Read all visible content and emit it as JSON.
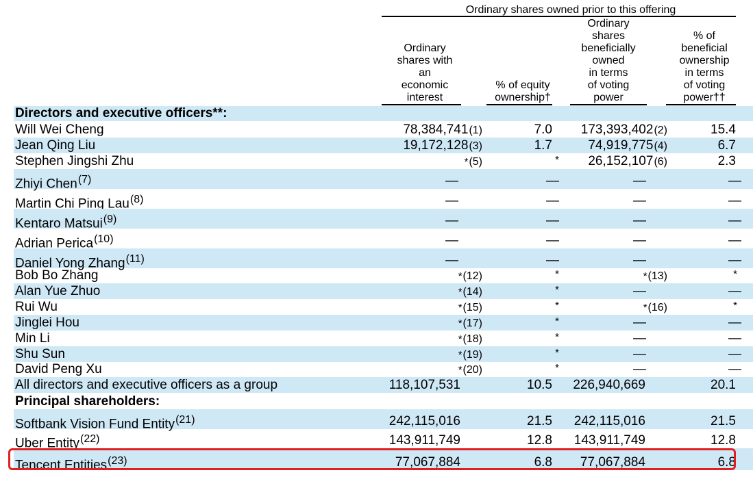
{
  "header": {
    "group": "Ordinary shares owned prior to this offering",
    "col1": [
      "Ordinary",
      "shares with",
      "an",
      "economic",
      "interest"
    ],
    "col2": [
      "% of equity",
      "ownership†"
    ],
    "col3": [
      "Ordinary",
      "shares",
      "beneficially",
      "owned",
      "in terms",
      "of voting",
      "power"
    ],
    "col4": [
      "% of",
      "beneficial",
      "ownership",
      "in terms",
      "of voting",
      "power††"
    ]
  },
  "rows": [
    {
      "name": "Directors and executive officers**:",
      "bold": true,
      "sup": "",
      "c1": "",
      "f1": "",
      "c2": "",
      "c3": "",
      "f3": "",
      "c4": ""
    },
    {
      "name": "Will Wei Cheng",
      "sup": "",
      "c1": "78,384,741",
      "f1": "(1)",
      "c2": "7.0",
      "c3": "173,393,402",
      "f3": "(2)",
      "c4": "15.4"
    },
    {
      "name": "Jean Qing Liu",
      "sup": "",
      "c1": "19,172,128",
      "f1": "(3)",
      "c2": "1.7",
      "c3": "74,919,775",
      "f3": "(4)",
      "c4": "6.7"
    },
    {
      "name": "Stephen Jingshi Zhu",
      "sup": "",
      "c1": "*",
      "f1": "(5)",
      "c2": "*",
      "c3": "26,152,107",
      "f3": "(6)",
      "c4": "2.3"
    },
    {
      "name": "Zhiyi Chen",
      "sup": "(7)",
      "c1": "—",
      "f1": "",
      "c2": "—",
      "c3": "—",
      "f3": "",
      "c4": "—"
    },
    {
      "name": "Martin Chi Ping Lau",
      "sup": "(8)",
      "c1": "—",
      "f1": "",
      "c2": "—",
      "c3": "—",
      "f3": "",
      "c4": "—"
    },
    {
      "name": "Kentaro Matsui",
      "sup": "(9)",
      "c1": "—",
      "f1": "",
      "c2": "—",
      "c3": "—",
      "f3": "",
      "c4": "—"
    },
    {
      "name": "Adrian Perica",
      "sup": "(10)",
      "c1": "—",
      "f1": "",
      "c2": "—",
      "c3": "—",
      "f3": "",
      "c4": "—"
    },
    {
      "name": "Daniel Yong Zhang",
      "sup": "(11)",
      "c1": "—",
      "f1": "",
      "c2": "—",
      "c3": "—",
      "f3": "",
      "c4": "—"
    },
    {
      "name": "Bob Bo Zhang",
      "sup": "",
      "c1": "*",
      "f1": "(12)",
      "c2": "*",
      "c3": "*",
      "f3": "(13)",
      "c4": "*"
    },
    {
      "name": "Alan Yue Zhuo",
      "sup": "",
      "c1": "*",
      "f1": "(14)",
      "c2": "*",
      "c3": "—",
      "f3": "",
      "c4": "—"
    },
    {
      "name": "Rui Wu",
      "sup": "",
      "c1": "*",
      "f1": "(15)",
      "c2": "*",
      "c3": "*",
      "f3": "(16)",
      "c4": "*"
    },
    {
      "name": "Jinglei Hou",
      "sup": "",
      "c1": "*",
      "f1": "(17)",
      "c2": "*",
      "c3": "—",
      "f3": "",
      "c4": "—"
    },
    {
      "name": "Min Li",
      "sup": "",
      "c1": "*",
      "f1": "(18)",
      "c2": "*",
      "c3": "—",
      "f3": "",
      "c4": "—"
    },
    {
      "name": "Shu Sun",
      "sup": "",
      "c1": "*",
      "f1": "(19)",
      "c2": "*",
      "c3": "—",
      "f3": "",
      "c4": "—"
    },
    {
      "name": "David Peng Xu",
      "sup": "",
      "c1": "*",
      "f1": "(20)",
      "c2": "*",
      "c3": "—",
      "f3": "",
      "c4": "—"
    },
    {
      "name": "All directors and executive officers as a group",
      "sup": "",
      "c1": "118,107,531",
      "f1": "",
      "c2": "10.5",
      "c3": "226,940,669",
      "f3": "",
      "c4": "20.1"
    },
    {
      "name": "Principal shareholders:",
      "bold": true,
      "sup": "",
      "c1": "",
      "f1": "",
      "c2": "",
      "c3": "",
      "f3": "",
      "c4": ""
    },
    {
      "name": "Softbank Vision Fund Entity",
      "sup": "(21)",
      "c1": "242,115,016",
      "f1": "",
      "c2": "21.5",
      "c3": "242,115,016",
      "f3": "",
      "c4": "21.5"
    },
    {
      "name": "Uber Entity",
      "sup": "(22)",
      "c1": "143,911,749",
      "f1": "",
      "c2": "12.8",
      "c3": "143,911,749",
      "f3": "",
      "c4": "12.8"
    },
    {
      "name": "Tencent Entities",
      "sup": "(23)",
      "c1": "77,067,884",
      "f1": "",
      "c2": "6.8",
      "c3": "77,067,884",
      "f3": "",
      "c4": "6.8"
    }
  ],
  "colors": {
    "row_alt": "#cfe8f6",
    "highlight": "#e02020"
  }
}
